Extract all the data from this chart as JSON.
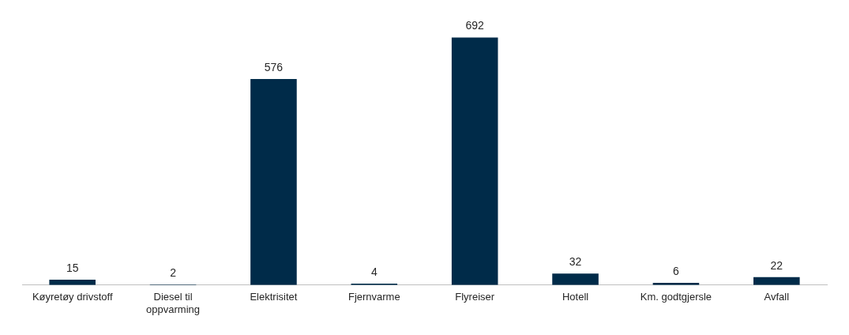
{
  "chart_data": {
    "type": "bar",
    "categories": [
      "Køyretøy drivstoff",
      "Diesel til oppvarming",
      "Elektrisitet",
      "Fjernvarme",
      "Flyreiser",
      "Hotell",
      "Km. godtgjersle",
      "Avfall"
    ],
    "values": [
      15,
      2,
      576,
      4,
      692,
      32,
      6,
      22
    ],
    "color": "#002b49",
    "data_labels": true,
    "grid": false,
    "legend": false
  }
}
